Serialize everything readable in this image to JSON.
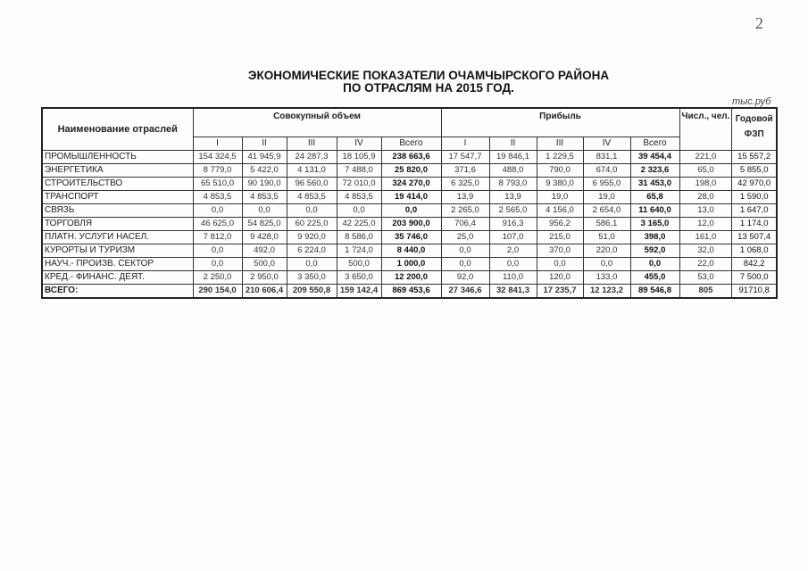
{
  "page_number": "2",
  "title_line1": "ЭКОНОМИЧЕСКИЕ ПОКАЗАТЕЛИ ОЧАМЧЫРСКОГО РАЙОНА",
  "title_line2": "ПО ОТРАСЛЯМ НА 2015 ГОД.",
  "unit": "тыс.руб",
  "headers": {
    "name": "Наименование отраслей",
    "volume": "Совокупный объем",
    "profit": "Прибыль",
    "count": "Числ., чел.",
    "payroll": "Годовой ФЗП",
    "quarters": [
      "I",
      "II",
      "III",
      "IV",
      "Всего"
    ]
  },
  "rows": [
    {
      "name": "ПРОМЫШЛЕННОСТЬ",
      "v": [
        "154 324,5",
        "41 945,9",
        "24 287,3",
        "18 105,9",
        "238 663,6"
      ],
      "p": [
        "17 547,7",
        "19 846,1",
        "1 229,5",
        "831,1",
        "39 454,4"
      ],
      "count": "221,0",
      "fzp": "15 557,2"
    },
    {
      "name": "ЭНЕРГЕТИКА",
      "v": [
        "8 779,0",
        "5 422,0",
        "4 131,0",
        "7 488,0",
        "25 820,0"
      ],
      "p": [
        "371,6",
        "488,0",
        "790,0",
        "674,0",
        "2 323,6"
      ],
      "count": "65,0",
      "fzp": "5 855,0"
    },
    {
      "name": "СТРОИТЕЛЬСТВО",
      "v": [
        "65 510,0",
        "90 190,0",
        "96 560,0",
        "72 010,0",
        "324 270,0"
      ],
      "p": [
        "6 325,0",
        "8 793,0",
        "9 380,0",
        "6 955,0",
        "31 453,0"
      ],
      "count": "198,0",
      "fzp": "42 970,0"
    },
    {
      "name": "ТРАНСПОРТ",
      "v": [
        "4 853,5",
        "4 853,5",
        "4 853,5",
        "4 853,5",
        "19 414,0"
      ],
      "p": [
        "13,9",
        "13,9",
        "19,0",
        "19,0",
        "65,8"
      ],
      "count": "28,0",
      "fzp": "1 590,0"
    },
    {
      "name": "СВЯЗЬ",
      "v": [
        "0,0",
        "0,0",
        "0,0",
        "0,0",
        "0,0"
      ],
      "p": [
        "2 265,0",
        "2 565,0",
        "4 156,0",
        "2 654,0",
        "11 640,0"
      ],
      "count": "13,0",
      "fzp": "1 647,0"
    },
    {
      "name": "ТОРГОВЛЯ",
      "v": [
        "46 625,0",
        "54 825,0",
        "60 225,0",
        "42 225,0",
        "203 900,0"
      ],
      "p": [
        "706,4",
        "916,3",
        "956,2",
        "586,1",
        "3 165,0"
      ],
      "count": "12,0",
      "fzp": "1 174,0"
    },
    {
      "name": "ПЛАТН. УСЛУГИ НАСЕЛ.",
      "v": [
        "7 812,0",
        "9 428,0",
        "9 920,0",
        "8 586,0",
        "35 746,0"
      ],
      "p": [
        "25,0",
        "107,0",
        "215,0",
        "51,0",
        "398,0"
      ],
      "count": "161,0",
      "fzp": "13 507,4"
    },
    {
      "name": "КУРОРТЫ И ТУРИЗМ",
      "v": [
        "0,0",
        "492,0",
        "6 224,0",
        "1 724,0",
        "8 440,0"
      ],
      "p": [
        "0,0",
        "2,0",
        "370,0",
        "220,0",
        "592,0"
      ],
      "count": "32,0",
      "fzp": "1 068,0"
    },
    {
      "name": "НАУЧ.- ПРОИЗВ. СЕКТОР",
      "v": [
        "0,0",
        "500,0",
        "0,0",
        "500,0",
        "1 000,0"
      ],
      "p": [
        "0,0",
        "0,0",
        "0,0",
        "0,0",
        "0,0"
      ],
      "count": "22,0",
      "fzp": "842,2"
    },
    {
      "name": "КРЕД.- ФИНАНС. ДЕЯТ.",
      "v": [
        "2 250,0",
        "2 950,0",
        "3 350,0",
        "3 650,0",
        "12 200,0"
      ],
      "p": [
        "92,0",
        "110,0",
        "120,0",
        "133,0",
        "455,0"
      ],
      "count": "53,0",
      "fzp": "7 500,0"
    }
  ],
  "total": {
    "name": "ВСЕГО:",
    "v": [
      "290 154,0",
      "210 606,4",
      "209 550,8",
      "159 142,4",
      "869 453,6"
    ],
    "p": [
      "27 346,6",
      "32 841,3",
      "17 235,7",
      "12 123,2",
      "89 546,8"
    ],
    "count": "805",
    "fzp": "91710,8"
  }
}
